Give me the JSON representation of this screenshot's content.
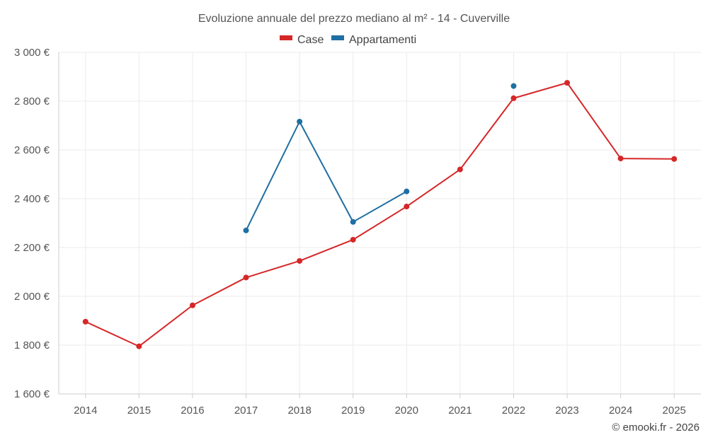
{
  "chart_data": {
    "type": "line",
    "title": "Evoluzione annuale del prezzo mediano al m² - 14 - Cuverville",
    "xlabel": "",
    "ylabel": "",
    "categories": [
      "2014",
      "2015",
      "2016",
      "2017",
      "2018",
      "2019",
      "2020",
      "2021",
      "2022",
      "2023",
      "2024",
      "2025"
    ],
    "ylim": [
      1600,
      3000
    ],
    "yticks": [
      1600,
      1800,
      2000,
      2200,
      2400,
      2600,
      2800,
      3000
    ],
    "ytick_labels": [
      "1 600 €",
      "1 800 €",
      "2 000 €",
      "2 200 €",
      "2 400 €",
      "2 600 €",
      "2 800 €",
      "3 000 €"
    ],
    "grid": true,
    "legend_position": "top-center",
    "series": [
      {
        "name": "Case",
        "color": "#d62728",
        "values": [
          1896,
          1795,
          1963,
          2077,
          2145,
          2232,
          2368,
          2520,
          2812,
          2875,
          2565,
          2563
        ]
      },
      {
        "name": "Appartamenti",
        "color": "#1f6fa3",
        "values": [
          null,
          null,
          null,
          2270,
          2716,
          2305,
          2430,
          null,
          2862,
          null,
          null,
          null
        ]
      }
    ],
    "credit": "© emooki.fr - 2026"
  }
}
